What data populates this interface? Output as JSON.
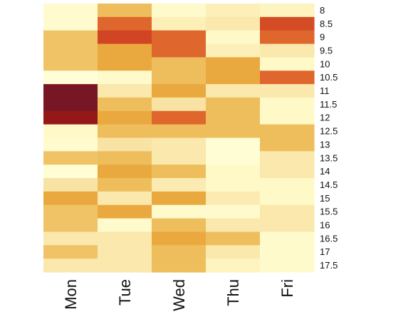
{
  "chart_data": {
    "type": "heatmap",
    "title": "",
    "xlabel": "",
    "ylabel": "",
    "columns": [
      "Mon",
      "Tue",
      "Wed",
      "Thu",
      "Fri"
    ],
    "rows": [
      "8",
      "8.5",
      "9",
      "9.5",
      "10",
      "10.5",
      "11",
      "11.5",
      "12",
      "12.5",
      "13",
      "13.5",
      "14",
      "14.5",
      "15",
      "15.5",
      "16",
      "16.5",
      "17",
      "17.5"
    ],
    "colormap": "YlOrRd",
    "colorbar": false,
    "values": [
      [
        0.08,
        0.4,
        0.1,
        0.18,
        0.15
      ],
      [
        0.08,
        0.62,
        0.18,
        0.22,
        0.7
      ],
      [
        0.38,
        0.72,
        0.62,
        0.12,
        0.62
      ],
      [
        0.38,
        0.48,
        0.62,
        0.18,
        0.22
      ],
      [
        0.38,
        0.48,
        0.4,
        0.48,
        0.12
      ],
      [
        0.03,
        0.1,
        0.4,
        0.48,
        0.62
      ],
      [
        1.0,
        0.22,
        0.48,
        0.22,
        0.22
      ],
      [
        1.0,
        0.4,
        0.25,
        0.4,
        0.12
      ],
      [
        0.9,
        0.48,
        0.62,
        0.4,
        0.12
      ],
      [
        0.12,
        0.4,
        0.4,
        0.4,
        0.4
      ],
      [
        0.08,
        0.25,
        0.22,
        0.05,
        0.4
      ],
      [
        0.38,
        0.4,
        0.22,
        0.05,
        0.22
      ],
      [
        0.05,
        0.48,
        0.4,
        0.12,
        0.22
      ],
      [
        0.25,
        0.4,
        0.2,
        0.12,
        0.12
      ],
      [
        0.48,
        0.22,
        0.48,
        0.2,
        0.12
      ],
      [
        0.38,
        0.48,
        0.1,
        0.1,
        0.22
      ],
      [
        0.38,
        0.1,
        0.4,
        0.22,
        0.22
      ],
      [
        0.22,
        0.22,
        0.48,
        0.4,
        0.1
      ],
      [
        0.38,
        0.22,
        0.4,
        0.22,
        0.1
      ],
      [
        0.22,
        0.22,
        0.4,
        0.15,
        0.1
      ]
    ]
  }
}
